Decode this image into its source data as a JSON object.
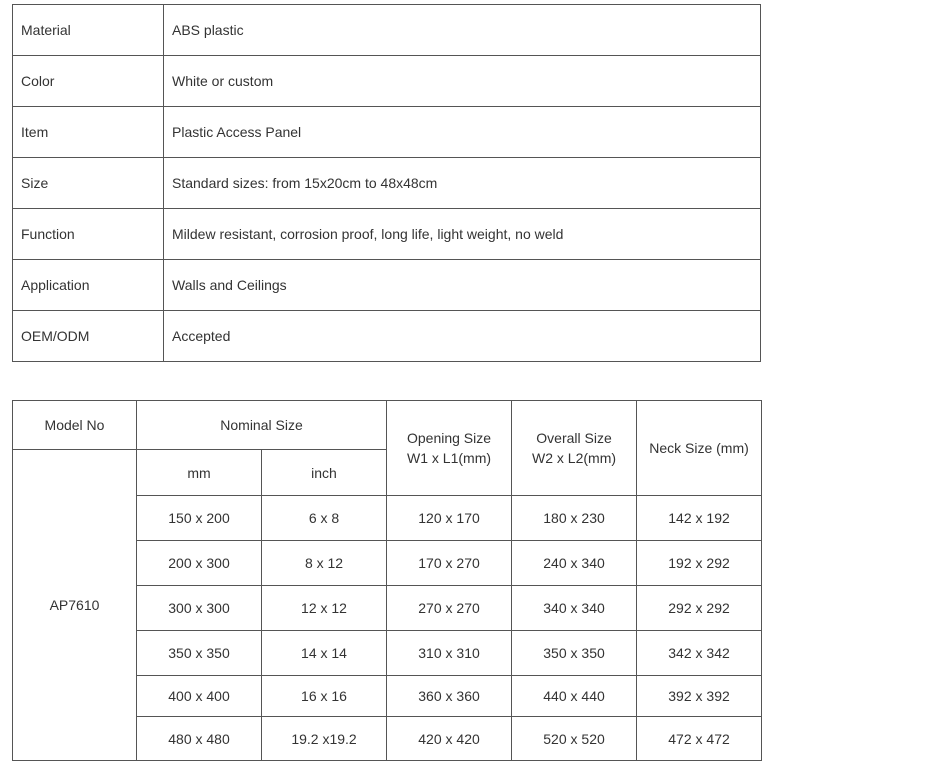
{
  "spec_table": [
    {
      "key": "Material",
      "value": "ABS plastic"
    },
    {
      "key": "Color",
      "value": "White or custom"
    },
    {
      "key": "Item",
      "value": "Plastic Access Panel"
    },
    {
      "key": "Size",
      "value": "Standard sizes: from 15x20cm to 48x48cm"
    },
    {
      "key": "Function",
      "value": "Mildew resistant, corrosion proof, long life, light weight, no weld"
    },
    {
      "key": "Application",
      "value": "Walls and Ceilings"
    },
    {
      "key": "OEM/ODM",
      "value": "Accepted"
    }
  ],
  "size_table": {
    "headers": {
      "model": "Model No",
      "nominal": "Nominal Size",
      "mm": "mm",
      "inch": "inch",
      "opening_1": "Opening Size",
      "opening_2": "W1 x L1(mm)",
      "overall_1": "Overall Size",
      "overall_2": "W2 x L2(mm)",
      "neck": "Neck Size (mm)"
    },
    "model": "AP7610",
    "rows": [
      [
        "150 x 200",
        "6 x 8",
        "120 x 170",
        "180 x 230",
        "142 x 192"
      ],
      [
        "200 x 300",
        "8 x 12",
        "170 x 270",
        "240 x 340",
        "192 x 292"
      ],
      [
        "300 x 300",
        "12 x 12",
        "270 x 270",
        "340 x 340",
        "292 x 292"
      ],
      [
        "350 x 350",
        "14 x 14",
        "310 x 310",
        "350 x 350",
        "342 x 342"
      ],
      [
        "400 x 400",
        "16 x 16",
        "360 x 360",
        "440 x 440",
        "392 x 392"
      ],
      [
        "480 x 480",
        "19.2 x19.2",
        "420 x 420",
        "520 x 520",
        "472 x 472"
      ]
    ]
  }
}
